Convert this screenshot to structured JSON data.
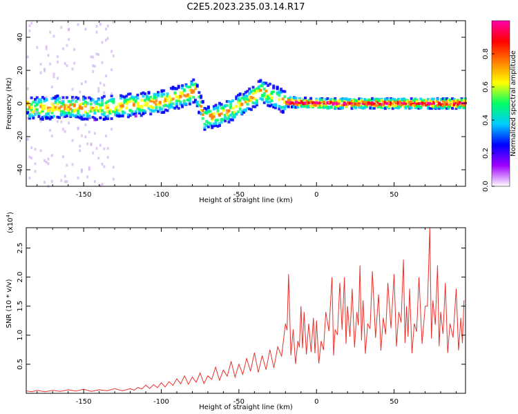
{
  "figure": {
    "title": "C2E5.2023.235.03.14.R17"
  },
  "chart_data": [
    {
      "type": "heatmap",
      "xlabel": "Height of straight line (km)",
      "ylabel": "Frequency (Hz)",
      "xlim": [
        -187,
        96
      ],
      "ylim": [
        -50,
        50
      ],
      "x_ticks": [
        -150,
        -100,
        -50,
        0,
        50
      ],
      "y_ticks": [
        -40,
        -20,
        0,
        20,
        40
      ],
      "colorbar": {
        "label": "Normalized spectral amplitude",
        "range": [
          0,
          1
        ],
        "ticks": [
          0.0,
          0.2,
          0.4,
          0.6,
          0.8
        ],
        "colormap": [
          "#ffffff",
          "#a000ff",
          "#0000ff",
          "#00ccff",
          "#00ff66",
          "#ffff00",
          "#ff8000",
          "#ff0000",
          "#ff00aa"
        ]
      },
      "ridge": [
        {
          "x": -185,
          "y": -3
        },
        {
          "x": -160,
          "y": -2
        },
        {
          "x": -140,
          "y": -3
        },
        {
          "x": -120,
          "y": -1
        },
        {
          "x": -100,
          "y": 1
        },
        {
          "x": -85,
          "y": 5
        },
        {
          "x": -78,
          "y": 8
        },
        {
          "x": -72,
          "y": -9
        },
        {
          "x": -60,
          "y": -6
        },
        {
          "x": -45,
          "y": 1
        },
        {
          "x": -35,
          "y": 8
        },
        {
          "x": -30,
          "y": 5
        },
        {
          "x": -20,
          "y": 1
        },
        {
          "x": 0,
          "y": 0
        },
        {
          "x": 50,
          "y": 0
        },
        {
          "x": 95,
          "y": 0
        }
      ],
      "grid": false
    },
    {
      "type": "line",
      "xlabel": "Height of straight line (km)",
      "ylabel": "SNR (10 * v/v)",
      "y_scale_note": "(x10",
      "y_scale_exp": "4",
      "xlim": [
        -187,
        96
      ],
      "ylim": [
        0,
        2.85
      ],
      "x_ticks": [
        -150,
        -100,
        -50,
        0,
        50
      ],
      "y_ticks": [
        0.5,
        1.0,
        1.5,
        2.0,
        2.5
      ],
      "series_color": "#e8302a",
      "series": [
        {
          "x": [
            -187,
            -180,
            -170,
            -160,
            -150,
            -140,
            -130,
            -120,
            -115,
            -110,
            -105,
            -100,
            -95,
            -90,
            -85,
            -80,
            -75,
            -70,
            -65,
            -60,
            -55,
            -50,
            -45,
            -40,
            -35,
            -30,
            -25,
            -20,
            -18,
            -15,
            -12,
            -10,
            -8,
            -5,
            -2,
            0,
            3,
            6,
            10,
            12,
            15,
            18,
            20,
            23,
            26,
            28,
            30,
            33,
            36,
            40,
            43,
            46,
            50,
            53,
            56,
            58,
            60,
            63,
            66,
            70,
            73,
            75,
            78,
            80,
            83,
            86,
            90,
            93,
            95
          ],
          "y": [
            0.04,
            0.05,
            0.05,
            0.06,
            0.07,
            0.06,
            0.08,
            0.08,
            0.1,
            0.14,
            0.15,
            0.18,
            0.2,
            0.25,
            0.3,
            0.28,
            0.35,
            0.3,
            0.45,
            0.4,
            0.55,
            0.5,
            0.6,
            0.7,
            0.65,
            0.75,
            0.8,
            1.2,
            2.05,
            1.1,
            0.9,
            1.5,
            1.4,
            1.2,
            1.3,
            1.25,
            0.9,
            1.4,
            2.0,
            1.1,
            1.9,
            2.0,
            1.5,
            1.8,
            1.4,
            2.2,
            1.6,
            1.2,
            2.1,
            1.7,
            1.3,
            1.9,
            2.05,
            1.4,
            2.3,
            1.5,
            1.8,
            1.2,
            2.0,
            1.5,
            2.85,
            1.6,
            2.2,
            1.4,
            1.9,
            1.2,
            1.8,
            1.3,
            1.6
          ]
        }
      ],
      "grid": false
    }
  ]
}
